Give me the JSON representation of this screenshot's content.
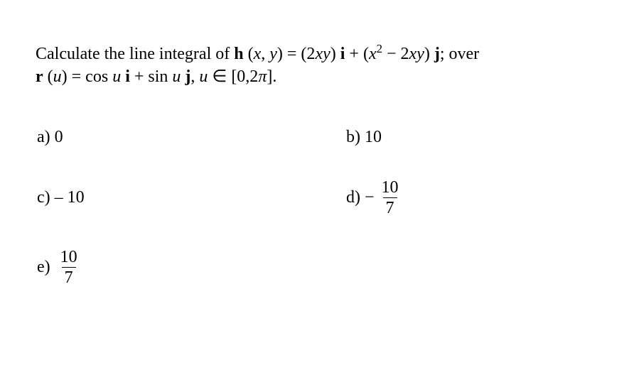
{
  "question": {
    "line1_prefix": "Calculate the line integral of ",
    "h": "h",
    "args": " (",
    "x": "x",
    "comma_y": ", ",
    "y": "y",
    "paren_eq": ") = (2",
    "xy1": "xy",
    "close_i": ") ",
    "i": "i",
    "plus": " + (",
    "x2": "x",
    "sq": "2",
    "minus": " − 2",
    "xy2": "xy",
    "close_j": ") ",
    "j": "j",
    "semi": "; over",
    "line2_r": "r",
    "line2_u": " (",
    "u1": "u",
    "line2_eq": ") = cos ",
    "u2": "u",
    "space_i": " ",
    "i2": "i",
    "plus2": " + sin ",
    "u3": "u",
    "space_j": " ",
    "j2": "j",
    "comma": ", ",
    "u4": "u",
    "in": " ∈ [0,2",
    "pi": "π",
    "end": "]."
  },
  "options": {
    "a": {
      "label": "a)",
      "value": "0"
    },
    "b": {
      "label": "b)",
      "value": "10"
    },
    "c": {
      "label": "c)",
      "value": "– 10"
    },
    "d": {
      "label": "d)",
      "neg": "−",
      "num": "10",
      "den": "7"
    },
    "e": {
      "label": "e)",
      "num": "10",
      "den": "7"
    }
  }
}
